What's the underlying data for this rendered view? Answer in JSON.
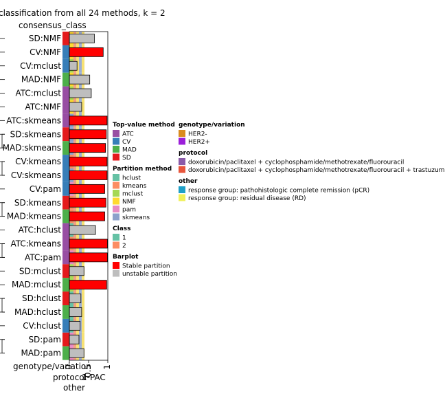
{
  "chart_data": {
    "type": "bar",
    "title": "classification from all 24 methods, k = 2",
    "annotation_title": "consensus_class",
    "bottom_labels": [
      "genotype/variation",
      "protocol",
      "other"
    ],
    "xlabel": "1-PAC",
    "xticks": [
      "0",
      "0.5",
      "1"
    ],
    "xlim": [
      0,
      1
    ],
    "categories": [
      "SD:NMF",
      "CV:NMF",
      "CV:mclust",
      "MAD:NMF",
      "ATC:mclust",
      "ATC:NMF",
      "ATC:skmeans",
      "SD:skmeans",
      "MAD:skmeans",
      "CV:kmeans",
      "CV:skmeans",
      "CV:pam",
      "SD:kmeans",
      "MAD:kmeans",
      "ATC:hclust",
      "ATC:kmeans",
      "ATC:pam",
      "SD:mclust",
      "MAD:mclust",
      "SD:hclust",
      "MAD:hclust",
      "CV:hclust",
      "SD:pam",
      "MAD:pam"
    ],
    "values": [
      0.65,
      0.88,
      0.2,
      0.53,
      0.57,
      0.32,
      0.98,
      0.96,
      0.94,
      0.98,
      0.98,
      0.92,
      0.95,
      0.92,
      0.68,
      0.99,
      0.99,
      0.38,
      0.97,
      0.3,
      0.32,
      0.28,
      0.25,
      0.38
    ],
    "stable": [
      false,
      true,
      false,
      false,
      false,
      false,
      true,
      true,
      true,
      true,
      true,
      true,
      true,
      true,
      false,
      true,
      true,
      false,
      true,
      false,
      false,
      false,
      false,
      false
    ],
    "top_method": [
      "SD",
      "CV",
      "CV",
      "MAD",
      "ATC",
      "ATC",
      "ATC",
      "SD",
      "MAD",
      "CV",
      "CV",
      "CV",
      "SD",
      "MAD",
      "ATC",
      "ATC",
      "ATC",
      "SD",
      "MAD",
      "SD",
      "MAD",
      "CV",
      "SD",
      "MAD"
    ],
    "partition_method": [
      "NMF",
      "NMF",
      "mclust",
      "NMF",
      "mclust",
      "NMF",
      "skmeans",
      "skmeans",
      "skmeans",
      "kmeans",
      "skmeans",
      "pam",
      "kmeans",
      "kmeans",
      "hclust",
      "kmeans",
      "pam",
      "mclust",
      "mclust",
      "hclust",
      "hclust",
      "hclust",
      "pam",
      "pam"
    ],
    "class_column_colors": [
      "#f08c6c",
      "#f5dc5a",
      "#8ca0cb",
      "#f5dc5a"
    ],
    "dendrogram_pairs": [
      [
        7,
        8
      ],
      [
        9,
        10
      ],
      [
        12,
        13
      ],
      [
        15,
        16
      ],
      [
        19,
        20
      ],
      [
        22,
        23
      ]
    ]
  },
  "legend": {
    "top_value": {
      "title": "Top-value method",
      "items": [
        {
          "label": "ATC",
          "color": "#984ea3"
        },
        {
          "label": "CV",
          "color": "#377eb8"
        },
        {
          "label": "MAD",
          "color": "#4daf4a"
        },
        {
          "label": "SD",
          "color": "#e41a1c"
        }
      ]
    },
    "partition": {
      "title": "Partition method",
      "items": [
        {
          "label": "hclust",
          "color": "#66c2a5"
        },
        {
          "label": "kmeans",
          "color": "#fc8d62"
        },
        {
          "label": "mclust",
          "color": "#a6d854"
        },
        {
          "label": "NMF",
          "color": "#ffd92f"
        },
        {
          "label": "pam",
          "color": "#e78ac3"
        },
        {
          "label": "skmeans",
          "color": "#8da0cb"
        }
      ]
    },
    "class": {
      "title": "Class",
      "items": [
        {
          "label": "1",
          "color": "#66c2a5"
        },
        {
          "label": "2",
          "color": "#fc8d62"
        }
      ]
    },
    "barplot": {
      "title": "Barplot",
      "items": [
        {
          "label": "Stable partition",
          "color": "#ff0000"
        },
        {
          "label": "unstable partition",
          "color": "#bebebe"
        }
      ]
    },
    "genotype": {
      "title": "genotype/variation",
      "items": [
        {
          "label": "HER2-",
          "color": "#d98b1f"
        },
        {
          "label": "HER2+",
          "color": "#9b1fd9"
        }
      ]
    },
    "protocol": {
      "title": "protocol",
      "items": [
        {
          "label": "doxorubicin/paclitaxel + cyclophosphamide/methotrexate/fluorouracil",
          "color": "#8a5aa8"
        },
        {
          "label": "doxorubicin/paclitaxel + cyclophosphamide/methotrexate/fluorouracil + trastuzumab",
          "color": "#e8553b"
        }
      ]
    },
    "other": {
      "title": "other",
      "items": [
        {
          "label": "response group: pathohistologic complete remission (pCR)",
          "color": "#1fa0c8"
        },
        {
          "label": "response group: residual disease (RD)",
          "color": "#f0f05a"
        }
      ]
    }
  }
}
